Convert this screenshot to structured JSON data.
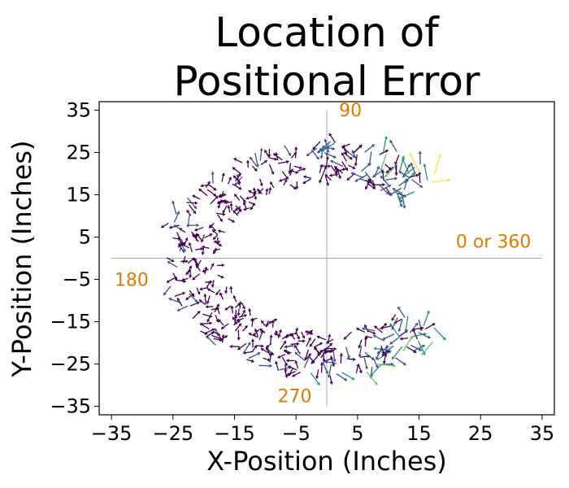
{
  "chart_data": {
    "type": "quiver",
    "title_line1": "Location of",
    "title_line2": "Positional Error",
    "xlabel": "X-Position (Inches)",
    "ylabel": "Y-Position (Inches)",
    "xlim": [
      -37,
      37
    ],
    "ylim": [
      -37,
      37
    ],
    "xticks": [
      -35,
      -25,
      -15,
      -5,
      5,
      15,
      25,
      35
    ],
    "yticks": [
      -35,
      -25,
      -15,
      -5,
      5,
      15,
      25,
      35
    ],
    "xtick_labels": [
      "−35",
      "−25",
      "−15",
      "−5",
      "5",
      "15",
      "25",
      "35"
    ],
    "ytick_labels": [
      "−35",
      "−25",
      "−15",
      "−5",
      "5",
      "15",
      "25",
      "35"
    ],
    "grid": false,
    "colormap": [
      "#440154",
      "#3b528b",
      "#21918c",
      "#5ec962",
      "#fde725"
    ],
    "reference_lines": {
      "x": 0,
      "y": 0,
      "color": "#999999"
    },
    "annotations": [
      {
        "text": "90",
        "x": 2,
        "y": 33.5
      },
      {
        "text": "0 or 360",
        "x": 21,
        "y": 2.5
      },
      {
        "text": "180",
        "x": -34.5,
        "y": -6.5
      },
      {
        "text": "270",
        "x": -8,
        "y": -34
      }
    ],
    "arc": {
      "center": [
        0,
        0
      ],
      "inner_radius": 17,
      "outer_radius": 27,
      "start_angle_deg": 45,
      "end_angle_deg": 318
    }
  }
}
